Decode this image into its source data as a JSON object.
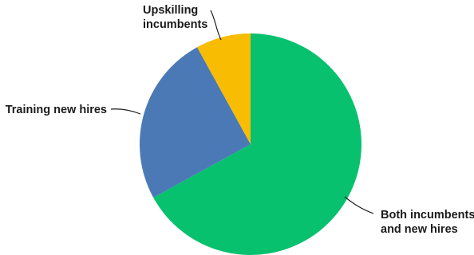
{
  "chart_data": {
    "type": "pie",
    "start_angle_deg": 0,
    "direction": "clockwise",
    "legend": "none",
    "slices": [
      {
        "label": [
          "Both incumbents",
          "and new hires"
        ],
        "value": 67,
        "color": "#07c16e"
      },
      {
        "label": [
          "Training new hires"
        ],
        "value": 25,
        "color": "#4b79b6"
      },
      {
        "label": [
          "Upskilling",
          "incumbents"
        ],
        "value": 8,
        "color": "#f8bc02"
      }
    ]
  }
}
